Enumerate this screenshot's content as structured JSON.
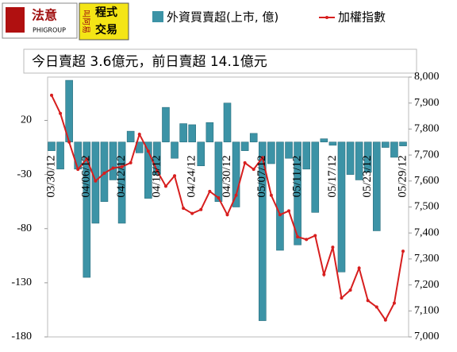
{
  "logo": {
    "left": "法意",
    "left_sub": "PHIGROUP",
    "right_top": "程式",
    "right_bottom": "交易",
    "right_side": "叫阿易"
  },
  "chart_data": {
    "type": "bar-line",
    "title": "今日賣超 3.6億元，前日賣超 14.1億元",
    "categories": [
      "03/30/12",
      null,
      null,
      null,
      "04/06/12",
      null,
      null,
      null,
      "04/12/12",
      null,
      null,
      null,
      "04/18/12",
      null,
      null,
      null,
      "04/24/12",
      null,
      null,
      null,
      "04/30/12",
      null,
      null,
      null,
      "05/07/12",
      null,
      null,
      null,
      "05/11/12",
      null,
      null,
      null,
      "05/17/12",
      null,
      null,
      null,
      "05/23/12",
      null,
      null,
      null,
      "05/29/12"
    ],
    "series": [
      {
        "name": "外資買賣超(上市, 億)",
        "color": "#3c93a6",
        "axis": "y",
        "values": [
          -8,
          -25,
          57,
          -25,
          -125,
          -75,
          -55,
          -35,
          -75,
          10,
          -10,
          -52,
          -30,
          32,
          -15,
          17,
          16,
          -22,
          18,
          -55,
          36,
          -60,
          -8,
          8,
          -165,
          -20,
          -100,
          -15,
          -95,
          -25,
          -65,
          3,
          -3,
          -120,
          -30,
          -35,
          -28,
          -82,
          -5,
          -14.1,
          -3.6
        ]
      },
      {
        "name": "加權指數",
        "color": "#d71e1e",
        "axis": "y2",
        "values": [
          7930,
          7860,
          7750,
          7645,
          7685,
          7600,
          7630,
          7650,
          7655,
          7670,
          7780,
          7715,
          7640,
          7580,
          7620,
          7495,
          7475,
          7490,
          7560,
          7535,
          7470,
          7545,
          7670,
          7645,
          7690,
          7545,
          7470,
          7485,
          7385,
          7375,
          7390,
          7240,
          7345,
          7150,
          7180,
          7265,
          7140,
          7115,
          7065,
          7130,
          7330
        ]
      }
    ],
    "ylim": [
      -180,
      60
    ],
    "yticks": [
      -180,
      -130,
      -80,
      -30,
      20
    ],
    "y2lim": [
      7000,
      8000
    ],
    "y2ticks": [
      {
        "value": 7000,
        "label": "7,000"
      },
      {
        "value": 7100,
        "label": "7,100"
      },
      {
        "value": 7200,
        "label": "7,200"
      },
      {
        "value": 7300,
        "label": "7,300"
      },
      {
        "value": 7400,
        "label": "7,400"
      },
      {
        "value": 7500,
        "label": "7,500"
      },
      {
        "value": 7600,
        "label": "7,600"
      },
      {
        "value": 7700,
        "label": "7,700"
      },
      {
        "value": 7800,
        "label": "7,800"
      },
      {
        "value": 7900,
        "label": "7,900"
      },
      {
        "value": 8000,
        "label": "8,000"
      }
    ],
    "legend": "top"
  }
}
